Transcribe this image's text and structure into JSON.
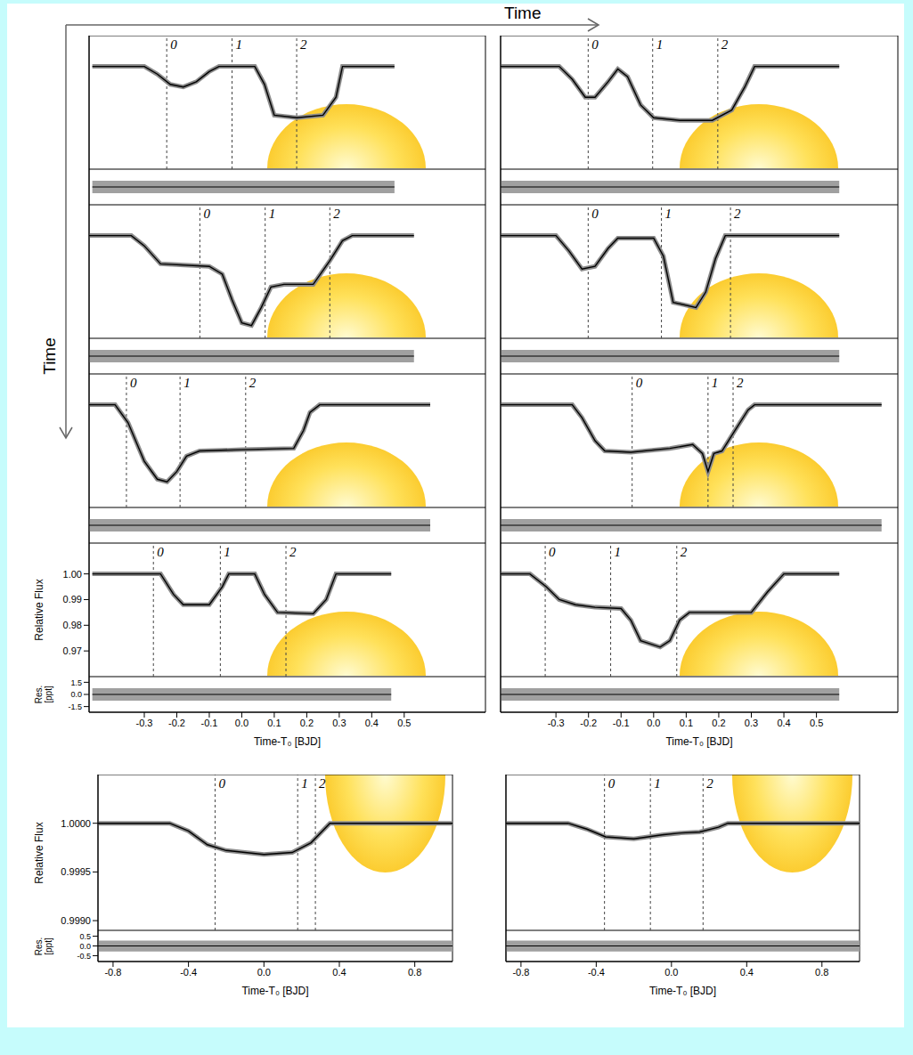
{
  "annotations": {
    "time_arrow_horizontal": "Time",
    "time_arrow_vertical": "Time"
  },
  "chart_data": [
    {
      "type": "line",
      "color": "#000000",
      "tick_labels": false,
      "x": [
        -0.46,
        -0.3,
        -0.26,
        -0.22,
        -0.18,
        -0.14,
        -0.1,
        -0.07,
        0.04,
        0.07,
        0.1,
        0.17,
        0.25,
        0.29,
        0.31,
        0.47
      ],
      "values": [
        1,
        1,
        0.997,
        0.993,
        0.992,
        0.994,
        0.998,
        1,
        1,
        0.993,
        0.981,
        0.98,
        0.981,
        0.988,
        1,
        1
      ],
      "xlim": [
        -0.47,
        0.75
      ],
      "xticks": [
        -0.3,
        -0.2,
        -0.1,
        {
          "value": 0,
          "label": "0.0"
        },
        0.1,
        0.2,
        0.3,
        0.4,
        0.5
      ],
      "ylim": [
        0.96,
        1.012
      ],
      "yticks": [
        {
          "value": 1,
          "label": "1.00"
        },
        0.99,
        0.98,
        0.97
      ],
      "epochs": {
        "x": [
          -0.231,
          -0.03,
          0.169
        ],
        "labels": [
          "0",
          "1",
          "2"
        ]
      },
      "residuals": {
        "x": [
          -0.46,
          0.47
        ],
        "values": [
          0,
          0
        ],
        "ylim": [
          -2.2,
          2.2
        ],
        "yticks": [
          1.5,
          {
            "value": 0,
            "label": "0.0"
          },
          -1.5
        ]
      }
    },
    {
      "type": "line",
      "color": "#000000",
      "tick_labels": false,
      "x": [
        -0.47,
        -0.29,
        -0.25,
        -0.21,
        -0.18,
        -0.14,
        -0.11,
        -0.08,
        -0.04,
        0.0,
        0.08,
        0.18,
        0.24,
        0.28,
        0.31,
        0.57
      ],
      "values": [
        1,
        1,
        0.995,
        0.988,
        0.988,
        0.994,
        0.999,
        0.996,
        0.985,
        0.98,
        0.979,
        0.979,
        0.983,
        0.992,
        1,
        1
      ],
      "xlim": [
        -0.47,
        0.75
      ],
      "xticks": [
        -0.3,
        -0.2,
        -0.1,
        {
          "value": 0,
          "label": "0.0"
        },
        0.1,
        0.2,
        0.3,
        0.4,
        0.5
      ],
      "ylim": [
        0.96,
        1.012
      ],
      "yticks": [
        {
          "value": 1,
          "label": "1.00"
        },
        0.99,
        0.98,
        0.97
      ],
      "epochs": {
        "x": [
          -0.201,
          -0.003,
          0.197
        ],
        "labels": [
          "0",
          "1",
          "2"
        ]
      },
      "residuals": {
        "x": [
          -0.47,
          0.57
        ],
        "values": [
          0,
          0
        ],
        "ylim": [
          -2.2,
          2.2
        ],
        "yticks": [
          1.5,
          {
            "value": 0,
            "label": "0.0"
          },
          -1.5
        ]
      }
    },
    {
      "type": "line",
      "color": "#000000",
      "tick_labels": false,
      "x": [
        -0.47,
        -0.34,
        -0.3,
        -0.25,
        -0.1,
        -0.06,
        -0.03,
        0.0,
        0.03,
        0.06,
        0.09,
        0.13,
        0.22,
        0.27,
        0.31,
        0.34,
        0.53
      ],
      "values": [
        1,
        1,
        0.996,
        0.989,
        0.988,
        0.985,
        0.975,
        0.966,
        0.965,
        0.972,
        0.98,
        0.981,
        0.981,
        0.99,
        0.998,
        1,
        1
      ],
      "xlim": [
        -0.47,
        0.75
      ],
      "xticks": [
        -0.3,
        -0.2,
        -0.1,
        {
          "value": 0,
          "label": "0.0"
        },
        0.1,
        0.2,
        0.3,
        0.4,
        0.5
      ],
      "ylim": [
        0.96,
        1.012
      ],
      "yticks": [
        {
          "value": 1,
          "label": "1.00"
        },
        0.99,
        0.98,
        0.97
      ],
      "epochs": {
        "x": [
          -0.129,
          0.072,
          0.271
        ],
        "labels": [
          "0",
          "1",
          "2"
        ]
      },
      "residuals": {
        "x": [
          -0.47,
          0.53
        ],
        "values": [
          0,
          0
        ],
        "ylim": [
          -2.2,
          2.2
        ],
        "yticks": [
          1.5,
          {
            "value": 0,
            "label": "0.0"
          },
          -1.5
        ]
      }
    },
    {
      "type": "line",
      "color": "#000000",
      "tick_labels": false,
      "x": [
        -0.47,
        -0.3,
        -0.26,
        -0.22,
        -0.18,
        -0.14,
        -0.11,
        0.0,
        0.03,
        0.06,
        0.13,
        0.16,
        0.19,
        0.22,
        0.57
      ],
      "values": [
        1,
        1,
        0.994,
        0.987,
        0.988,
        0.995,
        0.999,
        0.999,
        0.992,
        0.974,
        0.972,
        0.978,
        0.991,
        1,
        1
      ],
      "xlim": [
        -0.47,
        0.75
      ],
      "xticks": [
        -0.3,
        -0.2,
        -0.1,
        {
          "value": 0,
          "label": "0.0"
        },
        0.1,
        0.2,
        0.3,
        0.4,
        0.5
      ],
      "ylim": [
        0.96,
        1.012
      ],
      "yticks": [
        {
          "value": 1,
          "label": "1.00"
        },
        0.99,
        0.98,
        0.97
      ],
      "epochs": {
        "x": [
          -0.201,
          0.024,
          0.236
        ],
        "labels": [
          "0",
          "1",
          "2"
        ]
      },
      "residuals": {
        "x": [
          -0.47,
          0.57
        ],
        "values": [
          0,
          0
        ],
        "ylim": [
          -2.2,
          2.2
        ],
        "yticks": [
          1.5,
          {
            "value": 0,
            "label": "0.0"
          },
          -1.5
        ]
      }
    },
    {
      "type": "line",
      "color": "#000000",
      "tick_labels": false,
      "x": [
        -0.47,
        -0.39,
        -0.35,
        -0.3,
        -0.26,
        -0.23,
        -0.2,
        -0.17,
        -0.13,
        0.0,
        0.16,
        0.19,
        0.21,
        0.24,
        0.58
      ],
      "values": [
        1,
        1,
        0.993,
        0.978,
        0.971,
        0.97,
        0.974,
        0.98,
        0.982,
        0.9825,
        0.983,
        0.99,
        0.997,
        1,
        1
      ],
      "xlim": [
        -0.47,
        0.75
      ],
      "xticks": [
        -0.3,
        -0.2,
        -0.1,
        {
          "value": 0,
          "label": "0.0"
        },
        0.1,
        0.2,
        0.3,
        0.4,
        0.5
      ],
      "ylim": [
        0.96,
        1.012
      ],
      "yticks": [
        {
          "value": 1,
          "label": "1.00"
        },
        0.99,
        0.98,
        0.97
      ],
      "epochs": {
        "x": [
          -0.355,
          -0.19,
          0.012
        ],
        "labels": [
          "0",
          "1",
          "2"
        ]
      },
      "residuals": {
        "x": [
          -0.47,
          0.58
        ],
        "values": [
          0,
          0
        ],
        "ylim": [
          -2.2,
          2.2
        ],
        "yticks": [
          1.5,
          {
            "value": 0,
            "label": "0.0"
          },
          -1.5
        ]
      }
    },
    {
      "type": "line",
      "color": "#000000",
      "tick_labels": false,
      "x": [
        -0.47,
        -0.25,
        -0.22,
        -0.18,
        -0.15,
        -0.07,
        0.05,
        0.12,
        0.15,
        0.167,
        0.185,
        0.21,
        0.25,
        0.29,
        0.31,
        0.7
      ],
      "values": [
        1,
        1,
        0.995,
        0.986,
        0.982,
        0.9815,
        0.983,
        0.9845,
        0.981,
        0.974,
        0.981,
        0.982,
        0.99,
        0.998,
        1,
        1
      ],
      "xlim": [
        -0.47,
        0.75
      ],
      "xticks": [
        -0.3,
        -0.2,
        -0.1,
        {
          "value": 0,
          "label": "0.0"
        },
        0.1,
        0.2,
        0.3,
        0.4,
        0.5
      ],
      "ylim": [
        0.96,
        1.012
      ],
      "yticks": [
        {
          "value": 1,
          "label": "1.00"
        },
        0.99,
        0.98,
        0.97
      ],
      "epochs": {
        "x": [
          -0.066,
          0.167,
          0.244
        ],
        "labels": [
          "0",
          "1",
          "2"
        ]
      },
      "residuals": {
        "x": [
          -0.47,
          0.7
        ],
        "values": [
          0,
          0
        ],
        "ylim": [
          -2.2,
          2.2
        ],
        "yticks": [
          1.5,
          {
            "value": 0,
            "label": "0.0"
          },
          -1.5
        ]
      }
    },
    {
      "type": "line",
      "color": "#000000",
      "tick_labels": true,
      "x_label": "Time-T₀ [BJD]",
      "y_label": "Relative Flux",
      "x": [
        -0.46,
        -0.25,
        -0.21,
        -0.18,
        -0.1,
        -0.06,
        -0.04,
        0.04,
        0.07,
        0.11,
        0.22,
        0.26,
        0.29,
        0.46
      ],
      "values": [
        1,
        1,
        0.992,
        0.988,
        0.988,
        0.995,
        1,
        1,
        0.992,
        0.985,
        0.9845,
        0.99,
        1,
        1
      ],
      "xlim": [
        -0.47,
        0.75
      ],
      "xticks": [
        -0.3,
        -0.2,
        -0.1,
        {
          "value": 0,
          "label": "0.0"
        },
        0.1,
        0.2,
        0.3,
        0.4,
        0.5
      ],
      "ylim": [
        0.96,
        1.012
      ],
      "yticks": [
        {
          "value": 1,
          "label": "1.00"
        },
        0.99,
        0.98,
        0.97
      ],
      "epochs": {
        "x": [
          -0.272,
          -0.066,
          0.136
        ],
        "labels": [
          "0",
          "1",
          "2"
        ]
      },
      "residuals": {
        "x": [
          -0.46,
          0.46
        ],
        "values": [
          0,
          0
        ],
        "ylim": [
          -2.2,
          2.2
        ],
        "yticks": [
          1.5,
          {
            "value": 0,
            "label": "0.0"
          },
          -1.5
        ],
        "y_label": "Res. [ppt]"
      }
    },
    {
      "type": "line",
      "color": "#000000",
      "tick_labels": "x",
      "x_label": "Time-T₀ [BJD]",
      "x": [
        -0.47,
        -0.38,
        -0.33,
        -0.29,
        -0.24,
        -0.18,
        -0.1,
        -0.07,
        -0.04,
        0.02,
        0.05,
        0.08,
        0.11,
        0.3,
        0.35,
        0.4,
        0.57
      ],
      "values": [
        1,
        1,
        0.995,
        0.99,
        0.988,
        0.987,
        0.9865,
        0.982,
        0.974,
        0.9715,
        0.974,
        0.982,
        0.985,
        0.985,
        0.993,
        1,
        1
      ],
      "xlim": [
        -0.47,
        0.75
      ],
      "xticks": [
        -0.3,
        -0.2,
        -0.1,
        {
          "value": 0,
          "label": "0.0"
        },
        0.1,
        0.2,
        0.3,
        0.4,
        0.5
      ],
      "ylim": [
        0.96,
        1.012
      ],
      "yticks": [
        {
          "value": 1,
          "label": "1.00"
        },
        0.99,
        0.98,
        0.97
      ],
      "epochs": {
        "x": [
          -0.333,
          -0.132,
          0.071
        ],
        "labels": [
          "0",
          "1",
          "2"
        ]
      },
      "residuals": {
        "x": [
          -0.47,
          0.57
        ],
        "values": [
          0,
          0
        ],
        "ylim": [
          -2.2,
          2.2
        ],
        "yticks": [
          1.5,
          {
            "value": 0,
            "label": "0.0"
          },
          -1.5
        ]
      }
    },
    {
      "type": "line",
      "color": "#000000",
      "tick_labels": true,
      "x_label": "Time-T₀ [BJD]",
      "y_label": "Relative Flux",
      "x": [
        -0.88,
        -0.5,
        -0.4,
        -0.3,
        -0.2,
        0.0,
        0.15,
        0.25,
        0.35,
        1.0
      ],
      "values": [
        1,
        1,
        0.99992,
        0.99978,
        0.99972,
        0.99968,
        0.9997,
        0.9998,
        1,
        1
      ],
      "xlim": [
        -0.88,
        1.0
      ],
      "xticks": [
        -0.8,
        -0.4,
        {
          "value": 0,
          "label": "0.0"
        },
        0.4,
        0.8
      ],
      "ylim": [
        0.9989,
        1.0005
      ],
      "yticks": [
        {
          "value": 1,
          "label": "1.0000"
        },
        0.9995,
        {
          "value": 0.999,
          "label": "0.9990"
        }
      ],
      "epochs": {
        "x": [
          -0.259,
          0.179,
          0.273
        ],
        "labels": [
          "0",
          "1",
          "2"
        ]
      },
      "residuals": {
        "x": [
          -0.88,
          1.0
        ],
        "values": [
          0,
          0
        ],
        "ylim": [
          -0.8,
          0.8
        ],
        "yticks": [
          0.5,
          {
            "value": 0,
            "label": "0.0"
          },
          -0.5
        ],
        "y_label": "Res. [ppt]"
      }
    },
    {
      "type": "line",
      "color": "#000000",
      "tick_labels": "x",
      "x_label": "Time-T₀ [BJD]",
      "x": [
        -0.88,
        -0.55,
        -0.45,
        -0.35,
        -0.2,
        -0.05,
        0.05,
        0.15,
        0.25,
        0.3,
        1.0
      ],
      "values": [
        1,
        1,
        0.99994,
        0.99986,
        0.99984,
        0.99988,
        0.9999,
        0.99991,
        0.99996,
        1,
        1
      ],
      "xlim": [
        -0.88,
        1.0
      ],
      "xticks": [
        -0.8,
        -0.4,
        {
          "value": 0,
          "label": "0.0"
        },
        0.4,
        0.8
      ],
      "ylim": [
        0.9989,
        1.0005
      ],
      "yticks": [
        {
          "value": 1,
          "label": "1.0000"
        },
        0.9995,
        {
          "value": 0.999,
          "label": "0.9990"
        }
      ],
      "epochs": {
        "x": [
          -0.356,
          -0.112,
          0.168
        ],
        "labels": [
          "0",
          "1",
          "2"
        ]
      },
      "residuals": {
        "x": [
          -0.88,
          1.0
        ],
        "values": [
          0,
          0
        ],
        "ylim": [
          -0.8,
          0.8
        ],
        "yticks": [
          0.5,
          {
            "value": 0,
            "label": "0.0"
          },
          -0.5
        ]
      }
    }
  ]
}
